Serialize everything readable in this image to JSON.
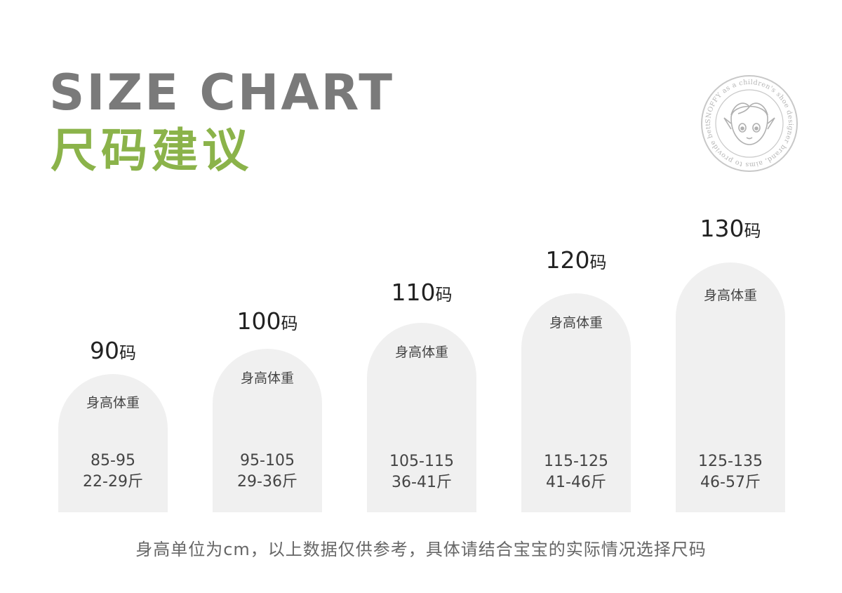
{
  "header": {
    "title_en": "SIZE CHART",
    "title_cn": "尺码建议"
  },
  "logo": {
    "ring_text": "SNOFFY as a children's shoe designer brand, aims to provide better clothing",
    "icon": "cartoon-child-face-icon",
    "color": "#c8c8c8"
  },
  "colors": {
    "title_gray": "#7a7a7a",
    "title_green": "#8bb34a",
    "arch_fill": "#f0f0f0"
  },
  "sizes": [
    {
      "size": "90",
      "unit": "码",
      "label": "身高体重",
      "height": "85-95",
      "weight": "22-29斤"
    },
    {
      "size": "100",
      "unit": "码",
      "label": "身高体重",
      "height": "95-105",
      "weight": "29-36斤"
    },
    {
      "size": "110",
      "unit": "码",
      "label": "身高体重",
      "height": "105-115",
      "weight": "36-41斤"
    },
    {
      "size": "120",
      "unit": "码",
      "label": "身高体重",
      "height": "115-125",
      "weight": "41-46斤"
    },
    {
      "size": "130",
      "unit": "码",
      "label": "身高体重",
      "height": "125-135",
      "weight": "46-57斤"
    }
  ],
  "footer": {
    "note": "身高单位为cm，以上数据仅供参考，具体请结合宝宝的实际情况选择尺码"
  }
}
